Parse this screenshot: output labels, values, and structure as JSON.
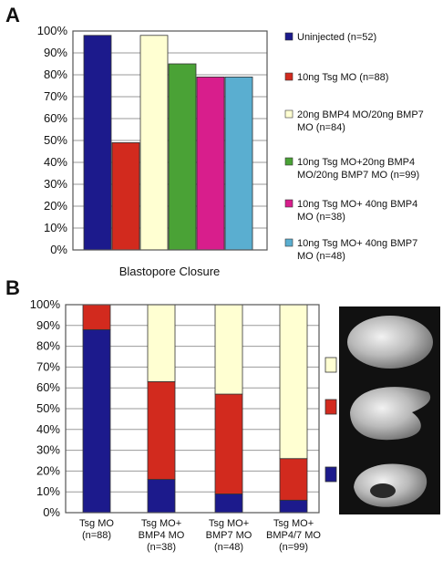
{
  "panel_a_letter": "A",
  "panel_b_letter": "B",
  "colors": {
    "uninjected": "#1c1a8c",
    "tsg": "#d22a1e",
    "bmp47": "#ffffd2",
    "tsg_bmp47": "#4aa236",
    "tsg_bmp4": "#d81e8c",
    "tsg_bmp7": "#5aaed0",
    "grid": "#9a9a9a",
    "frame": "#555555"
  },
  "chart_data": [
    {
      "type": "bar",
      "panel": "A",
      "xlabel": "Blastopore Closure",
      "ylim": [
        0,
        100
      ],
      "yticks": [
        "0%",
        "10%",
        "20%",
        "30%",
        "40%",
        "50%",
        "60%",
        "70%",
        "80%",
        "90%",
        "100%"
      ],
      "grid": true,
      "legend_position": "right",
      "series": [
        {
          "name": "Uninjected (n=52)",
          "lines": [
            "Uninjected (n=52)"
          ],
          "value": 98,
          "color_key": "uninjected"
        },
        {
          "name": "10ng Tsg MO (n=88)",
          "lines": [
            "10ng Tsg MO (n=88)"
          ],
          "value": 49,
          "color_key": "tsg"
        },
        {
          "name": "20ng BMP4 MO/20ng BMP7 MO (n=84)",
          "lines": [
            "20ng BMP4 MO/20ng BMP7",
            "MO (n=84)"
          ],
          "value": 98,
          "color_key": "bmp47"
        },
        {
          "name": "10ng Tsg MO+20ng BMP4 MO/20ng BMP7 MO (n=99)",
          "lines": [
            "10ng Tsg MO+20ng BMP4",
            "MO/20ng BMP7 MO (n=99)"
          ],
          "value": 85,
          "color_key": "tsg_bmp47"
        },
        {
          "name": "10ng Tsg MO+ 40ng BMP4 MO (n=38)",
          "lines": [
            "10ng Tsg MO+ 40ng BMP4",
            "MO (n=38)"
          ],
          "value": 79,
          "color_key": "tsg_bmp4"
        },
        {
          "name": "10ng Tsg MO+ 40ng BMP7 MO (n=48)",
          "lines": [
            "10ng Tsg MO+ 40ng BMP7",
            "MO (n=48)"
          ],
          "value": 79,
          "color_key": "tsg_bmp7"
        }
      ]
    },
    {
      "type": "bar",
      "stacked": true,
      "panel": "B",
      "ylim": [
        0,
        100
      ],
      "yticks": [
        "0%",
        "10%",
        "20%",
        "30%",
        "40%",
        "50%",
        "60%",
        "70%",
        "80%",
        "90%",
        "100%"
      ],
      "grid": true,
      "legend_position": "right",
      "categories": [
        {
          "lines": [
            "Tsg MO",
            "(n=88)"
          ]
        },
        {
          "lines": [
            "Tsg MO+",
            "BMP4  MO",
            "(n=38)"
          ]
        },
        {
          "lines": [
            "Tsg MO+",
            "BMP7 MO",
            "(n=48)"
          ]
        },
        {
          "lines": [
            "Tsg MO+",
            "BMP4/7 MO",
            "(n=99)"
          ]
        }
      ],
      "series": [
        {
          "color_key": "uninjected",
          "values": [
            88,
            16,
            9,
            6
          ]
        },
        {
          "color_key": "tsg",
          "values": [
            12,
            47,
            48,
            20
          ]
        },
        {
          "color_key": "bmp47",
          "values": [
            0,
            37,
            43,
            74
          ]
        }
      ],
      "legend_swatches": [
        "bmp47",
        "tsg",
        "uninjected"
      ]
    }
  ]
}
